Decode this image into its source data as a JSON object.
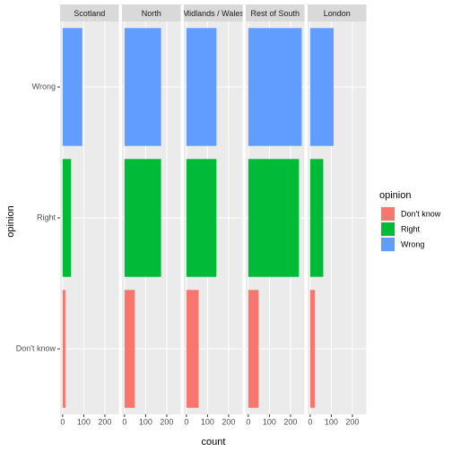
{
  "chart_data": {
    "type": "bar",
    "orientation": "horizontal",
    "facets": [
      "Scotland",
      "North",
      "Midlands / Wales",
      "Rest of South",
      "London"
    ],
    "xlabel": "count",
    "ylabel": "opinion",
    "legend_title": "opinion",
    "legend": "right",
    "grid": true,
    "series": [
      {
        "name": "Don't know",
        "color": "#f8766d",
        "values": [
          13,
          49,
          58,
          49,
          22
        ]
      },
      {
        "name": "Right",
        "color": "#00ba38",
        "values": [
          40,
          173,
          142,
          240,
          62
        ]
      },
      {
        "name": "Wrong",
        "color": "#619cff",
        "values": [
          93,
          173,
          142,
          253,
          111
        ]
      }
    ],
    "xlim": [
      -12,
      266
    ],
    "xticks": [
      0,
      100,
      200
    ]
  }
}
